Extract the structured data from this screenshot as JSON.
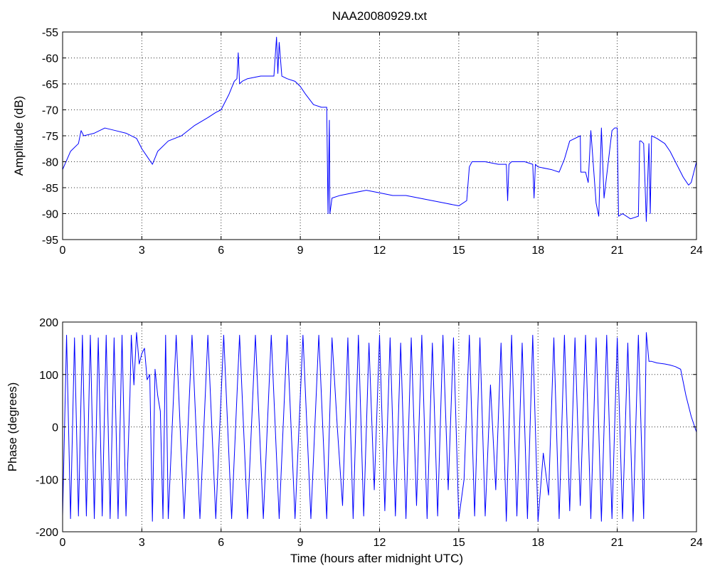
{
  "chart_data": [
    {
      "type": "line",
      "title": "NAA20080929.txt",
      "xlabel": "",
      "ylabel": "Amplitude (dB)",
      "xlim": [
        0,
        24
      ],
      "ylim": [
        -95,
        -55
      ],
      "xticks": [
        0,
        3,
        6,
        9,
        12,
        15,
        18,
        21,
        24
      ],
      "yticks": [
        -55,
        -60,
        -65,
        -70,
        -75,
        -80,
        -85,
        -90,
        -95
      ],
      "grid": true,
      "color": "#0000ff",
      "series": [
        {
          "x": [
            0,
            0.3,
            0.6,
            0.7,
            0.8,
            1.2,
            1.6,
            2.0,
            2.4,
            2.8,
            3.0,
            3.2,
            3.4,
            3.6,
            4.0,
            4.5,
            5.0,
            5.5,
            5.8,
            6.0,
            6.3,
            6.5,
            6.6,
            6.65,
            6.7,
            6.8,
            7.0,
            7.5,
            8.0,
            8.1,
            8.15,
            8.2,
            8.3,
            8.5,
            8.8,
            9.0,
            9.2,
            9.5,
            9.8,
            10.0,
            10.05,
            10.1,
            10.12,
            10.2,
            10.5,
            11.0,
            11.5,
            12.0,
            12.5,
            13.0,
            13.5,
            14.0,
            14.5,
            15.0,
            15.3,
            15.4,
            15.5,
            16.0,
            16.5,
            16.8,
            16.85,
            16.9,
            17.0,
            17.5,
            17.8,
            17.85,
            17.9,
            18.0,
            18.5,
            18.8,
            19.0,
            19.2,
            19.6,
            19.62,
            19.8,
            19.9,
            20.0,
            20.2,
            20.3,
            20.4,
            20.5,
            20.8,
            20.9,
            21.0,
            21.05,
            21.2,
            21.5,
            21.8,
            21.85,
            21.9,
            22.0,
            22.1,
            22.2,
            22.25,
            22.3,
            22.5,
            22.8,
            23.0,
            23.2,
            23.5,
            23.7,
            23.8,
            24.0
          ],
          "y": [
            -81.5,
            -78,
            -76.5,
            -74,
            -75,
            -74.5,
            -73.5,
            -74,
            -74.5,
            -75.5,
            -77.5,
            -79,
            -80.5,
            -78,
            -76,
            -75,
            -73,
            -71.5,
            -70.5,
            -70,
            -67,
            -64.5,
            -64,
            -59,
            -65,
            -64.5,
            -64,
            -63.5,
            -63.5,
            -56,
            -63,
            -57,
            -63.5,
            -64,
            -64.5,
            -65.5,
            -67,
            -69,
            -69.5,
            -69.5,
            -90,
            -72,
            -90,
            -87,
            -86.5,
            -86,
            -85.5,
            -86,
            -86.5,
            -86.5,
            -87,
            -87.5,
            -88,
            -88.5,
            -87.5,
            -81,
            -80,
            -80,
            -80.5,
            -80.5,
            -87.5,
            -80.5,
            -80,
            -80,
            -80.5,
            -87,
            -80.5,
            -81,
            -81.5,
            -82,
            -79.5,
            -76,
            -75,
            -82,
            -82,
            -84,
            -74,
            -88,
            -90.5,
            -73.5,
            -87,
            -74,
            -73.5,
            -73.5,
            -90.5,
            -90,
            -91,
            -90.5,
            -76,
            -76,
            -76.5,
            -91.5,
            -76.5,
            -90,
            -75,
            -75.5,
            -76.5,
            -78,
            -80,
            -83,
            -84.5,
            -84,
            -80
          ]
        }
      ]
    },
    {
      "type": "line",
      "title": "",
      "xlabel": "Time (hours after midnight UTC)",
      "ylabel": "Phase (degrees)",
      "xlim": [
        0,
        24
      ],
      "ylim": [
        -200,
        200
      ],
      "xticks": [
        0,
        3,
        6,
        9,
        12,
        15,
        18,
        21,
        24
      ],
      "yticks": [
        200,
        100,
        0,
        -100,
        -200
      ],
      "grid": true,
      "color": "#0000ff",
      "series": [
        {
          "x": [
            0,
            0.15,
            0.3,
            0.45,
            0.6,
            0.75,
            0.9,
            1.05,
            1.2,
            1.35,
            1.5,
            1.65,
            1.8,
            1.95,
            2.1,
            2.25,
            2.4,
            2.55,
            2.6,
            2.7,
            2.8,
            2.9,
            3.0,
            3.1,
            3.2,
            3.3,
            3.4,
            3.5,
            3.6,
            3.7,
            3.8,
            3.9,
            4.0,
            4.3,
            4.6,
            4.9,
            5.2,
            5.5,
            5.8,
            6.1,
            6.4,
            6.7,
            7.0,
            7.3,
            7.6,
            7.9,
            8.2,
            8.5,
            8.8,
            9.1,
            9.4,
            9.7,
            10.0,
            10.2,
            10.4,
            10.6,
            10.8,
            11.0,
            11.2,
            11.4,
            11.6,
            11.8,
            12.0,
            12.2,
            12.4,
            12.6,
            12.8,
            13.0,
            13.2,
            13.4,
            13.6,
            13.8,
            14.0,
            14.2,
            14.4,
            14.6,
            14.8,
            15.0,
            15.2,
            15.4,
            15.6,
            15.8,
            16.0,
            16.2,
            16.4,
            16.6,
            16.8,
            17.0,
            17.2,
            17.4,
            17.6,
            17.8,
            18.0,
            18.2,
            18.4,
            18.6,
            18.8,
            19.0,
            19.2,
            19.4,
            19.6,
            19.8,
            20.0,
            20.2,
            20.4,
            20.6,
            20.8,
            21.0,
            21.2,
            21.4,
            21.6,
            21.8,
            22.0,
            22.1,
            22.2,
            22.3,
            22.5,
            22.8,
            23.0,
            23.2,
            23.4,
            23.6,
            23.8,
            24.0
          ],
          "y": [
            -170,
            175,
            -175,
            170,
            -170,
            175,
            -170,
            175,
            -175,
            170,
            -170,
            175,
            -175,
            170,
            -175,
            175,
            -170,
            60,
            175,
            80,
            180,
            120,
            140,
            150,
            90,
            100,
            -180,
            110,
            60,
            30,
            -175,
            175,
            -175,
            175,
            -175,
            175,
            -175,
            175,
            -175,
            175,
            -175,
            175,
            -175,
            175,
            -175,
            175,
            -175,
            175,
            -175,
            175,
            -175,
            175,
            -175,
            170,
            0,
            -150,
            170,
            -175,
            175,
            -170,
            160,
            -120,
            175,
            -160,
            170,
            -170,
            160,
            -175,
            170,
            -150,
            175,
            -175,
            160,
            -170,
            175,
            -120,
            170,
            -175,
            -100,
            175,
            -170,
            170,
            -170,
            80,
            -120,
            160,
            -180,
            175,
            -170,
            160,
            -175,
            175,
            -180,
            -50,
            -130,
            170,
            -175,
            175,
            -160,
            170,
            -150,
            175,
            -175,
            170,
            -180,
            175,
            -175,
            170,
            -175,
            160,
            -180,
            175,
            -175,
            180,
            125,
            125,
            122,
            120,
            118,
            115,
            110,
            60,
            20,
            -10
          ]
        }
      ]
    }
  ]
}
